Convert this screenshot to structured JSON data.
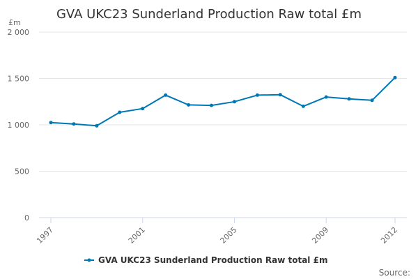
{
  "chart_data": {
    "type": "line",
    "title": "GVA UKC23 Sunderland Production Raw total £m",
    "ylabel": "£m",
    "xlabel": "",
    "ylim": [
      0,
      2000
    ],
    "yticks": [
      0,
      500,
      1000,
      1500,
      2000
    ],
    "ytick_labels": [
      "0",
      "500",
      "1 000",
      "1 500",
      "2 000"
    ],
    "xticks": [
      1997,
      2001,
      2005,
      2009,
      2012
    ],
    "xtick_labels": [
      "1997",
      "2001",
      "2005",
      "2009",
      "2012"
    ],
    "grid": true,
    "legend": "bottom-center",
    "x": [
      1997,
      1998,
      1999,
      2000,
      2001,
      2002,
      2003,
      2004,
      2005,
      2006,
      2007,
      2008,
      2009,
      2010,
      2011,
      2012
    ],
    "series": [
      {
        "name": "GVA UKC23 Sunderland Production Raw total £m",
        "color": "#0077b5",
        "values": [
          1025,
          1010,
          990,
          1135,
          1175,
          1320,
          1215,
          1210,
          1250,
          1320,
          1325,
          1200,
          1300,
          1280,
          1265,
          1510
        ]
      }
    ],
    "source_label": "Source:"
  }
}
